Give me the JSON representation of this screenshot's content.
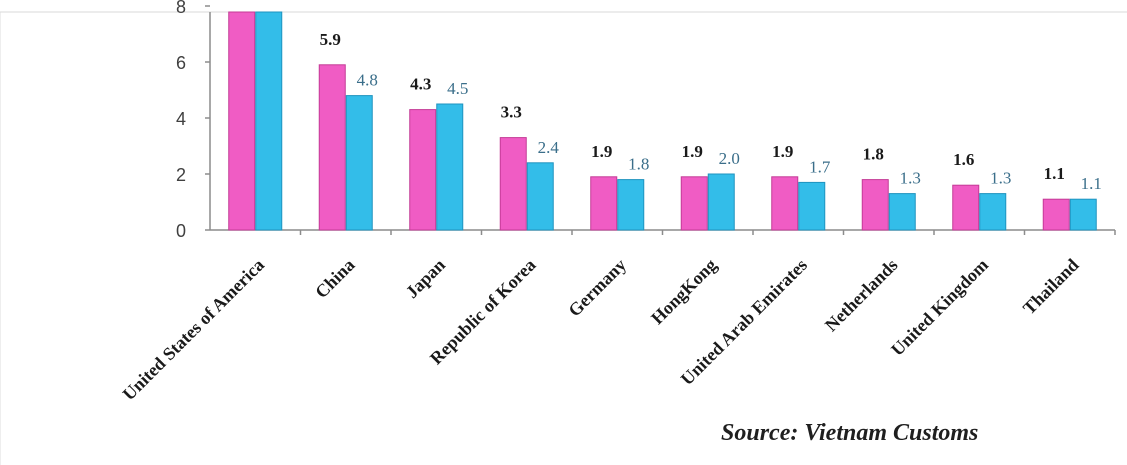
{
  "chart_data": {
    "type": "bar",
    "categories": [
      "United States of America",
      "China",
      "Japan",
      "Republic of Korea",
      "Germany",
      "HongKong",
      "United Arab Emirates",
      "Netherlands",
      "United Kingdom",
      "Thailand"
    ],
    "series": [
      {
        "values": [
          9.0,
          5.9,
          4.3,
          3.3,
          1.9,
          1.9,
          1.9,
          1.8,
          1.6,
          1.1
        ],
        "labels": [
          "",
          "5.9",
          "4.3",
          "3.3",
          "1.9",
          "1.9",
          "1.9",
          "1.8",
          "1.6",
          "1.1"
        ],
        "color": "#f05cc4"
      },
      {
        "values": [
          9.0,
          4.8,
          4.5,
          2.4,
          1.8,
          2.0,
          1.7,
          1.3,
          1.3,
          1.1
        ],
        "labels": [
          "",
          "4.8",
          "4.5",
          "2.4",
          "1.8",
          "2.0",
          "1.7",
          "1.3",
          "1.3",
          "1.1"
        ],
        "color": "#33bde9"
      }
    ],
    "yticks": [
      "0",
      "2",
      "4",
      "6",
      "8"
    ],
    "ylim": [
      0,
      8
    ],
    "grid": false,
    "source": "Source: Vietnam Customs"
  }
}
